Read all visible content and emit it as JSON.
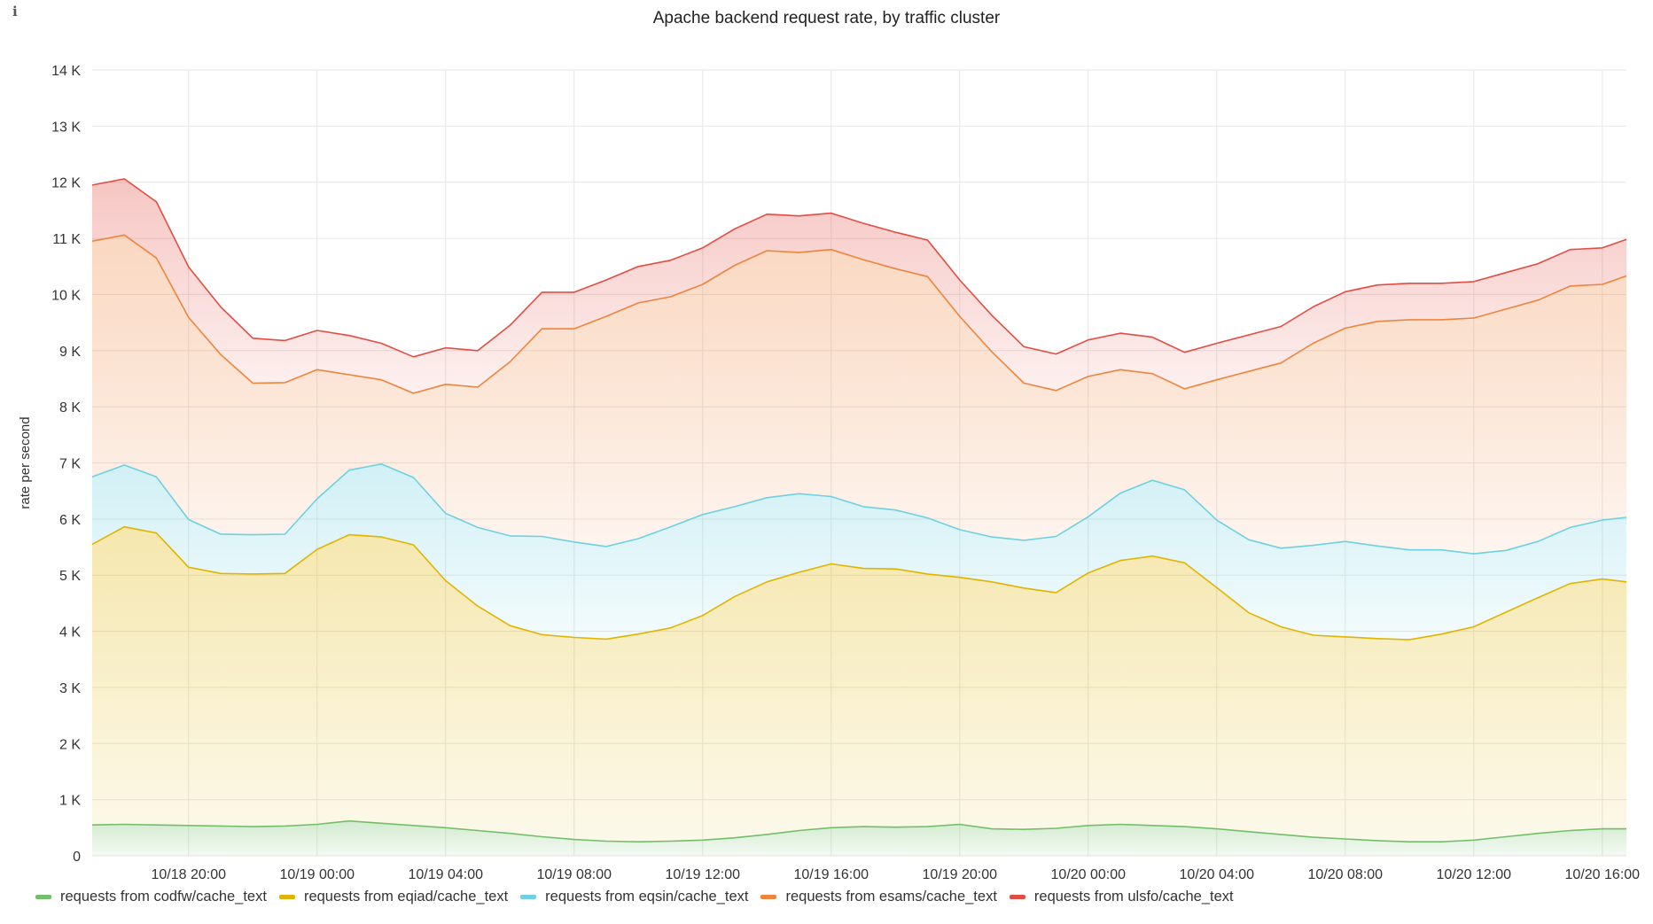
{
  "panel": {
    "info_icon": "i",
    "title": "Apache backend request rate, by traffic cluster"
  },
  "chart_data": {
    "type": "area",
    "stacked": true,
    "title": "Apache backend request rate, by traffic cluster",
    "xlabel": "",
    "ylabel": "rate per second",
    "ylim": [
      0,
      14000
    ],
    "y_ticks": [
      {
        "value": 0,
        "label": "0"
      },
      {
        "value": 1000,
        "label": "1 K"
      },
      {
        "value": 2000,
        "label": "2 K"
      },
      {
        "value": 3000,
        "label": "3 K"
      },
      {
        "value": 4000,
        "label": "4 K"
      },
      {
        "value": 5000,
        "label": "5 K"
      },
      {
        "value": 6000,
        "label": "6 K"
      },
      {
        "value": 7000,
        "label": "7 K"
      },
      {
        "value": 8000,
        "label": "8 K"
      },
      {
        "value": 9000,
        "label": "9 K"
      },
      {
        "value": 10000,
        "label": "10 K"
      },
      {
        "value": 11000,
        "label": "11 K"
      },
      {
        "value": 12000,
        "label": "12 K"
      },
      {
        "value": 13000,
        "label": "13 K"
      },
      {
        "value": 14000,
        "label": "14 K"
      }
    ],
    "x_range": [
      "10/18 17:00",
      "10/20 16:45"
    ],
    "x_ticks": [
      {
        "t": "10/18 20:00",
        "label": "10/18 20:00"
      },
      {
        "t": "10/19 00:00",
        "label": "10/19 00:00"
      },
      {
        "t": "10/19 04:00",
        "label": "10/19 04:00"
      },
      {
        "t": "10/19 08:00",
        "label": "10/19 08:00"
      },
      {
        "t": "10/19 12:00",
        "label": "10/19 12:00"
      },
      {
        "t": "10/19 16:00",
        "label": "10/19 16:00"
      },
      {
        "t": "10/19 20:00",
        "label": "10/19 20:00"
      },
      {
        "t": "10/20 00:00",
        "label": "10/20 00:00"
      },
      {
        "t": "10/20 04:00",
        "label": "10/20 04:00"
      },
      {
        "t": "10/20 08:00",
        "label": "10/20 08:00"
      },
      {
        "t": "10/20 12:00",
        "label": "10/20 12:00"
      },
      {
        "t": "10/20 16:00",
        "label": "10/20 16:00"
      }
    ],
    "x": [
      "10/18 17:00",
      "10/18 18:00",
      "10/18 19:00",
      "10/18 20:00",
      "10/18 21:00",
      "10/18 22:00",
      "10/18 23:00",
      "10/19 00:00",
      "10/19 01:00",
      "10/19 02:00",
      "10/19 03:00",
      "10/19 04:00",
      "10/19 05:00",
      "10/19 06:00",
      "10/19 07:00",
      "10/19 08:00",
      "10/19 09:00",
      "10/19 10:00",
      "10/19 11:00",
      "10/19 12:00",
      "10/19 13:00",
      "10/19 14:00",
      "10/19 15:00",
      "10/19 16:00",
      "10/19 17:00",
      "10/19 18:00",
      "10/19 19:00",
      "10/19 20:00",
      "10/19 21:00",
      "10/19 22:00",
      "10/19 23:00",
      "10/20 00:00",
      "10/20 01:00",
      "10/20 02:00",
      "10/20 03:00",
      "10/20 04:00",
      "10/20 05:00",
      "10/20 06:00",
      "10/20 07:00",
      "10/20 08:00",
      "10/20 09:00",
      "10/20 10:00",
      "10/20 11:00",
      "10/20 12:00",
      "10/20 13:00",
      "10/20 14:00",
      "10/20 15:00",
      "10/20 16:00",
      "10/20 16:45"
    ],
    "grid": true,
    "legend_position": "bottom-left",
    "series": [
      {
        "name": "requests from codfw/cache_text",
        "color": "#73bf69",
        "values": [
          550,
          560,
          550,
          540,
          530,
          520,
          530,
          560,
          620,
          580,
          540,
          500,
          450,
          400,
          340,
          290,
          260,
          250,
          260,
          280,
          320,
          380,
          450,
          500,
          520,
          510,
          520,
          560,
          480,
          470,
          490,
          540,
          560,
          540,
          520,
          480,
          430,
          380,
          330,
          300,
          270,
          250,
          250,
          280,
          340,
          400,
          450,
          480,
          480
        ]
      },
      {
        "name": "requests from eqiad/cache_text",
        "color": "#e0b400",
        "values": [
          5000,
          5300,
          5200,
          4600,
          4500,
          4500,
          4500,
          4900,
          5100,
          5100,
          5000,
          4400,
          4000,
          3700,
          3600,
          3600,
          3600,
          3700,
          3800,
          4000,
          4300,
          4500,
          4600,
          4700,
          4600,
          4600,
          4500,
          4400,
          4400,
          4300,
          4200,
          4500,
          4700,
          4800,
          4700,
          4300,
          3900,
          3700,
          3600,
          3600,
          3600,
          3600,
          3700,
          3800,
          4000,
          4200,
          4400,
          4450,
          4400
        ]
      },
      {
        "name": "requests from eqsin/cache_text",
        "color": "#6ed0e0",
        "values": [
          1200,
          1100,
          1000,
          850,
          700,
          700,
          700,
          900,
          1150,
          1300,
          1200,
          1200,
          1400,
          1600,
          1750,
          1700,
          1650,
          1700,
          1800,
          1800,
          1600,
          1500,
          1400,
          1200,
          1100,
          1050,
          1000,
          850,
          800,
          850,
          1000,
          1000,
          1200,
          1350,
          1300,
          1200,
          1300,
          1400,
          1600,
          1700,
          1650,
          1600,
          1500,
          1300,
          1100,
          1000,
          1000,
          1050,
          1150
        ]
      },
      {
        "name": "requests from esams/cache_text",
        "color": "#ef843c",
        "values": [
          4200,
          4100,
          3900,
          3600,
          3200,
          2700,
          2700,
          2300,
          1700,
          1500,
          1500,
          2300,
          2500,
          3100,
          3700,
          3800,
          4100,
          4200,
          4100,
          4100,
          4300,
          4400,
          4300,
          4400,
          4400,
          4300,
          4300,
          3800,
          3300,
          2800,
          2600,
          2500,
          2200,
          1900,
          1800,
          2500,
          3000,
          3300,
          3600,
          3800,
          4000,
          4100,
          4100,
          4200,
          4300,
          4300,
          4300,
          4200,
          4300
        ]
      },
      {
        "name": "requests from ulsfo/cache_text",
        "color": "#e24d42",
        "values": [
          1000,
          1000,
          1000,
          900,
          850,
          800,
          750,
          700,
          700,
          650,
          650,
          650,
          650,
          650,
          650,
          650,
          650,
          650,
          650,
          650,
          650,
          650,
          650,
          650,
          650,
          650,
          650,
          650,
          650,
          650,
          650,
          650,
          650,
          650,
          650,
          650,
          650,
          650,
          650,
          650,
          650,
          650,
          650,
          650,
          650,
          650,
          650,
          650,
          650
        ]
      }
    ]
  },
  "legend": {
    "items": [
      {
        "label": "requests from codfw/cache_text",
        "color": "#73bf69"
      },
      {
        "label": "requests from eqiad/cache_text",
        "color": "#e0b400"
      },
      {
        "label": "requests from eqsin/cache_text",
        "color": "#6ed0e0"
      },
      {
        "label": "requests from esams/cache_text",
        "color": "#ef843c"
      },
      {
        "label": "requests from ulsfo/cache_text",
        "color": "#e24d42"
      }
    ]
  }
}
